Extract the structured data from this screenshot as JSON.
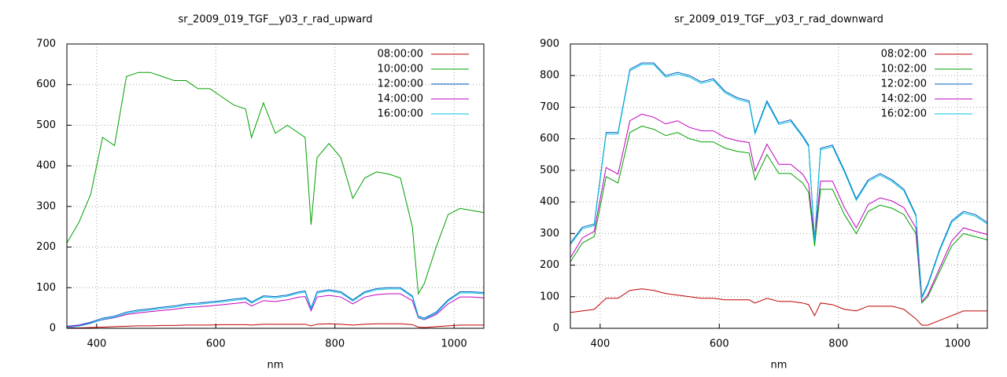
{
  "chart_data": [
    {
      "type": "line",
      "title": "sr_2009_019_TGF__y03_r_rad_upward",
      "x_label": "nm",
      "x": [
        350,
        370,
        390,
        410,
        430,
        450,
        470,
        490,
        510,
        530,
        550,
        570,
        590,
        610,
        630,
        650,
        660,
        680,
        700,
        720,
        740,
        750,
        760,
        770,
        790,
        810,
        830,
        850,
        870,
        890,
        910,
        930,
        940,
        950,
        970,
        990,
        1010,
        1030,
        1050
      ],
      "xlim": [
        350,
        1050
      ],
      "xticks": [
        400,
        600,
        800,
        1000
      ],
      "ylim": [
        0,
        700
      ],
      "yticks": [
        0,
        100,
        200,
        300,
        400,
        500,
        600,
        700
      ],
      "grid": true,
      "legend": "top-right",
      "series": [
        {
          "name": "08:00:00",
          "color": "#c00000",
          "values": [
            1,
            1,
            2,
            3,
            4,
            5,
            6,
            6,
            7,
            7,
            8,
            8,
            8,
            9,
            9,
            9,
            8,
            10,
            10,
            10,
            10,
            10,
            6,
            10,
            11,
            10,
            8,
            10,
            11,
            11,
            11,
            9,
            3,
            2,
            4,
            6,
            8,
            8,
            8
          ]
        },
        {
          "name": "10:00:00",
          "color": "#00a000",
          "values": [
            210,
            260,
            330,
            470,
            450,
            620,
            630,
            630,
            620,
            610,
            610,
            590,
            590,
            570,
            550,
            540,
            470,
            555,
            480,
            500,
            480,
            470,
            255,
            420,
            455,
            420,
            320,
            370,
            385,
            380,
            370,
            250,
            85,
            110,
            200,
            280,
            295,
            290,
            285
          ]
        },
        {
          "name": "12:00:00",
          "color": "#0060c0",
          "values": [
            5,
            8,
            15,
            25,
            30,
            40,
            45,
            48,
            52,
            55,
            60,
            62,
            65,
            68,
            72,
            75,
            65,
            80,
            78,
            82,
            90,
            92,
            50,
            90,
            95,
            90,
            70,
            90,
            98,
            100,
            100,
            80,
            30,
            25,
            40,
            70,
            90,
            90,
            88
          ]
        },
        {
          "name": "14:00:00",
          "color": "#c000c0",
          "values": [
            4,
            7,
            13,
            21,
            26,
            34,
            38,
            41,
            44,
            47,
            51,
            53,
            55,
            58,
            61,
            64,
            55,
            68,
            66,
            70,
            77,
            78,
            43,
            77,
            81,
            77,
            60,
            77,
            83,
            85,
            85,
            68,
            26,
            21,
            34,
            60,
            77,
            77,
            75
          ]
        },
        {
          "name": "16:00:00",
          "color": "#00c0e0",
          "values": [
            2,
            5,
            12,
            22,
            27,
            37,
            42,
            45,
            49,
            52,
            57,
            59,
            62,
            65,
            69,
            72,
            62,
            77,
            75,
            79,
            87,
            89,
            47,
            87,
            92,
            87,
            67,
            87,
            95,
            97,
            97,
            77,
            27,
            22,
            37,
            67,
            87,
            87,
            85
          ]
        }
      ]
    },
    {
      "type": "line",
      "title": "sr_2009_019_TGF__y03_r_rad_downward",
      "x_label": "nm",
      "x": [
        350,
        370,
        390,
        410,
        430,
        450,
        470,
        490,
        510,
        530,
        550,
        570,
        590,
        610,
        630,
        650,
        660,
        680,
        700,
        720,
        740,
        750,
        760,
        770,
        790,
        810,
        830,
        850,
        870,
        890,
        910,
        930,
        940,
        950,
        970,
        990,
        1010,
        1030,
        1050
      ],
      "xlim": [
        350,
        1050
      ],
      "xticks": [
        400,
        600,
        800,
        1000
      ],
      "ylim": [
        0,
        900
      ],
      "yticks": [
        0,
        100,
        200,
        300,
        400,
        500,
        600,
        700,
        800,
        900
      ],
      "grid": true,
      "legend": "top-right",
      "series": [
        {
          "name": "08:02:00",
          "color": "#c00000",
          "values": [
            50,
            55,
            60,
            95,
            95,
            120,
            125,
            120,
            110,
            105,
            100,
            95,
            95,
            90,
            90,
            90,
            80,
            95,
            85,
            85,
            80,
            75,
            40,
            80,
            75,
            60,
            55,
            70,
            70,
            70,
            60,
            30,
            10,
            10,
            25,
            40,
            55,
            55,
            55
          ]
        },
        {
          "name": "10:02:00",
          "color": "#00a000",
          "values": [
            210,
            270,
            290,
            480,
            460,
            620,
            640,
            630,
            610,
            620,
            600,
            590,
            590,
            570,
            560,
            555,
            470,
            550,
            490,
            490,
            460,
            430,
            260,
            440,
            440,
            360,
            300,
            370,
            390,
            380,
            360,
            300,
            80,
            100,
            180,
            260,
            300,
            290,
            280
          ]
        },
        {
          "name": "12:02:00",
          "color": "#0060c0",
          "values": [
            270,
            320,
            330,
            620,
            620,
            820,
            840,
            840,
            800,
            810,
            800,
            780,
            790,
            750,
            730,
            720,
            620,
            720,
            650,
            660,
            610,
            580,
            280,
            570,
            580,
            500,
            410,
            470,
            490,
            470,
            440,
            360,
            100,
            140,
            250,
            340,
            370,
            360,
            335
          ]
        },
        {
          "name": "14:02:00",
          "color": "#c000c0",
          "values": [
            223,
            286,
            307,
            509,
            488,
            657,
            678,
            668,
            647,
            657,
            636,
            625,
            625,
            604,
            594,
            588,
            498,
            583,
            519,
            519,
            488,
            456,
            276,
            466,
            466,
            382,
            318,
            392,
            413,
            403,
            382,
            318,
            85,
            106,
            191,
            276,
            318,
            307,
            297
          ]
        },
        {
          "name": "16:02:00",
          "color": "#00c0e0",
          "values": [
            265,
            315,
            325,
            615,
            615,
            815,
            835,
            835,
            795,
            805,
            795,
            775,
            785,
            745,
            725,
            715,
            615,
            715,
            645,
            655,
            605,
            575,
            275,
            565,
            575,
            495,
            405,
            465,
            485,
            465,
            435,
            355,
            95,
            135,
            245,
            335,
            365,
            355,
            330
          ]
        }
      ]
    }
  ]
}
